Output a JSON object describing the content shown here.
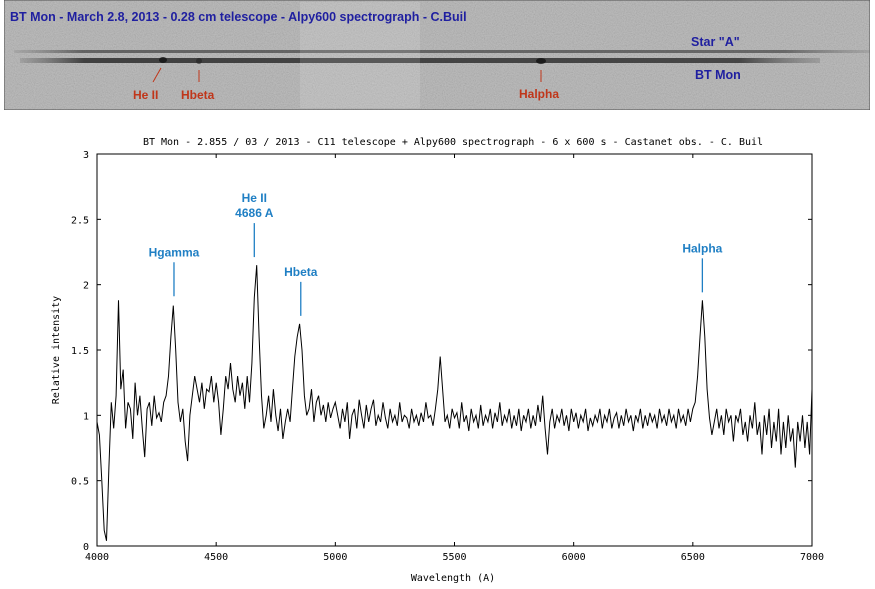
{
  "spectrum_image": {
    "caption": "BT Mon - March 2.8, 2013 - 0.28 cm telescope - Alpy600 spectrograph - C.Buil",
    "label_star_a": "Star \"A\"",
    "label_bt_mon": "BT Mon",
    "line_labels": [
      "He II",
      "Hbeta",
      "Halpha"
    ],
    "colors": {
      "caption": "#1f1fa0",
      "star_labels": "#1f1fa0",
      "lines": "#c0361a",
      "background": "#bdbdbd"
    }
  },
  "chart_data": {
    "type": "line",
    "title": "BT Mon - 2.855 / 03 / 2013 - C11 telescope + Alpy600 spectrograph - 6 x 600 s - Castanet obs. - C. Buil",
    "xlabel": "Wavelength (A)",
    "ylabel": "Relative intensity",
    "xlim": [
      4000,
      7000
    ],
    "ylim": [
      0,
      3
    ],
    "xticks": [
      4000,
      4500,
      5000,
      5500,
      6000,
      6500,
      7000
    ],
    "yticks": [
      0,
      0.5,
      1,
      1.5,
      2,
      2.5,
      3
    ],
    "ytick_labels": [
      "0",
      "0.5",
      "1",
      "1.5",
      "2",
      "2.5",
      "3"
    ],
    "grid": false,
    "annotation_color": "#1f7fc4",
    "annotations": [
      {
        "lines": [
          "Hgamma"
        ],
        "x": 4323,
        "peak": 1.85
      },
      {
        "lines": [
          "He II",
          "4686 A"
        ],
        "x": 4660,
        "peak": 2.15
      },
      {
        "lines": [
          "Hbeta"
        ],
        "x": 4855,
        "peak": 1.7
      },
      {
        "lines": [
          "Halpha"
        ],
        "x": 6540,
        "peak": 1.88
      }
    ],
    "series": [
      {
        "points": [
          [
            4000,
            0.95
          ],
          [
            4010,
            0.85
          ],
          [
            4020,
            0.5
          ],
          [
            4030,
            0.12
          ],
          [
            4040,
            0.04
          ],
          [
            4050,
            0.6
          ],
          [
            4060,
            1.1
          ],
          [
            4070,
            0.9
          ],
          [
            4080,
            1.15
          ],
          [
            4090,
            1.88
          ],
          [
            4100,
            1.2
          ],
          [
            4110,
            1.35
          ],
          [
            4120,
            0.9
          ],
          [
            4130,
            1.1
          ],
          [
            4140,
            1.05
          ],
          [
            4150,
            0.82
          ],
          [
            4160,
            1.25
          ],
          [
            4170,
            1.0
          ],
          [
            4180,
            1.15
          ],
          [
            4190,
            0.9
          ],
          [
            4200,
            0.68
          ],
          [
            4210,
            1.05
          ],
          [
            4220,
            1.1
          ],
          [
            4230,
            0.92
          ],
          [
            4240,
            1.15
          ],
          [
            4250,
            0.98
          ],
          [
            4260,
            1.02
          ],
          [
            4270,
            0.95
          ],
          [
            4280,
            1.1
          ],
          [
            4290,
            1.15
          ],
          [
            4300,
            1.3
          ],
          [
            4310,
            1.6
          ],
          [
            4320,
            1.84
          ],
          [
            4330,
            1.5
          ],
          [
            4340,
            1.1
          ],
          [
            4350,
            0.95
          ],
          [
            4360,
            1.05
          ],
          [
            4370,
            0.8
          ],
          [
            4380,
            0.65
          ],
          [
            4390,
            1.0
          ],
          [
            4400,
            1.15
          ],
          [
            4410,
            1.3
          ],
          [
            4420,
            1.2
          ],
          [
            4430,
            1.1
          ],
          [
            4440,
            1.25
          ],
          [
            4450,
            1.05
          ],
          [
            4460,
            1.2
          ],
          [
            4470,
            1.18
          ],
          [
            4480,
            1.3
          ],
          [
            4490,
            1.1
          ],
          [
            4500,
            1.25
          ],
          [
            4510,
            1.1
          ],
          [
            4520,
            0.85
          ],
          [
            4530,
            1.05
          ],
          [
            4540,
            1.3
          ],
          [
            4550,
            1.2
          ],
          [
            4560,
            1.4
          ],
          [
            4570,
            1.2
          ],
          [
            4580,
            1.1
          ],
          [
            4590,
            1.3
          ],
          [
            4600,
            1.15
          ],
          [
            4610,
            1.25
          ],
          [
            4620,
            1.05
          ],
          [
            4630,
            1.3
          ],
          [
            4640,
            1.1
          ],
          [
            4650,
            1.4
          ],
          [
            4660,
            1.9
          ],
          [
            4670,
            2.15
          ],
          [
            4680,
            1.6
          ],
          [
            4690,
            1.15
          ],
          [
            4700,
            0.9
          ],
          [
            4710,
            1.0
          ],
          [
            4720,
            1.15
          ],
          [
            4730,
            0.95
          ],
          [
            4740,
            1.2
          ],
          [
            4750,
            1.0
          ],
          [
            4760,
            0.88
          ],
          [
            4770,
            1.05
          ],
          [
            4780,
            0.82
          ],
          [
            4790,
            0.95
          ],
          [
            4800,
            1.05
          ],
          [
            4810,
            0.95
          ],
          [
            4820,
            1.2
          ],
          [
            4830,
            1.45
          ],
          [
            4840,
            1.6
          ],
          [
            4850,
            1.7
          ],
          [
            4860,
            1.5
          ],
          [
            4870,
            1.15
          ],
          [
            4880,
            1.0
          ],
          [
            4890,
            1.05
          ],
          [
            4900,
            1.2
          ],
          [
            4910,
            0.95
          ],
          [
            4920,
            1.1
          ],
          [
            4930,
            1.15
          ],
          [
            4940,
            1.0
          ],
          [
            4950,
            1.08
          ],
          [
            4960,
            0.95
          ],
          [
            4970,
            1.1
          ],
          [
            4980,
            0.98
          ],
          [
            4990,
            1.05
          ],
          [
            5000,
            1.1
          ],
          [
            5010,
            1.0
          ],
          [
            5020,
            0.9
          ],
          [
            5030,
            1.05
          ],
          [
            5040,
            0.95
          ],
          [
            5050,
            1.1
          ],
          [
            5060,
            0.82
          ],
          [
            5070,
            1.0
          ],
          [
            5080,
            1.05
          ],
          [
            5090,
            0.9
          ],
          [
            5100,
            1.12
          ],
          [
            5110,
            1.0
          ],
          [
            5120,
            0.9
          ],
          [
            5130,
            1.08
          ],
          [
            5140,
            0.95
          ],
          [
            5150,
            1.05
          ],
          [
            5160,
            1.12
          ],
          [
            5170,
            0.92
          ],
          [
            5180,
            1.0
          ],
          [
            5190,
            0.95
          ],
          [
            5200,
            1.1
          ],
          [
            5210,
            0.98
          ],
          [
            5220,
            0.9
          ],
          [
            5230,
            1.05
          ],
          [
            5240,
            0.95
          ],
          [
            5250,
            1.0
          ],
          [
            5260,
            0.92
          ],
          [
            5270,
            1.1
          ],
          [
            5280,
            0.95
          ],
          [
            5290,
            1.0
          ],
          [
            5300,
            0.98
          ],
          [
            5310,
            0.9
          ],
          [
            5320,
            1.05
          ],
          [
            5330,
            0.95
          ],
          [
            5340,
            1.0
          ],
          [
            5350,
            0.92
          ],
          [
            5360,
            1.02
          ],
          [
            5370,
            0.95
          ],
          [
            5380,
            1.1
          ],
          [
            5390,
            0.98
          ],
          [
            5400,
            1.0
          ],
          [
            5410,
            0.92
          ],
          [
            5420,
            1.05
          ],
          [
            5430,
            1.2
          ],
          [
            5440,
            1.45
          ],
          [
            5450,
            1.2
          ],
          [
            5460,
            0.95
          ],
          [
            5470,
            1.0
          ],
          [
            5480,
            0.9
          ],
          [
            5490,
            1.05
          ],
          [
            5500,
            0.98
          ],
          [
            5510,
            1.02
          ],
          [
            5520,
            0.9
          ],
          [
            5530,
            1.1
          ],
          [
            5540,
            0.95
          ],
          [
            5550,
            1.0
          ],
          [
            5560,
            0.88
          ],
          [
            5570,
            1.05
          ],
          [
            5580,
            0.95
          ],
          [
            5590,
            1.0
          ],
          [
            5600,
            0.9
          ],
          [
            5610,
            1.08
          ],
          [
            5620,
            0.92
          ],
          [
            5630,
            1.0
          ],
          [
            5640,
            0.95
          ],
          [
            5650,
            1.05
          ],
          [
            5660,
            0.9
          ],
          [
            5670,
            1.02
          ],
          [
            5680,
            0.95
          ],
          [
            5690,
            1.1
          ],
          [
            5700,
            0.92
          ],
          [
            5710,
            1.0
          ],
          [
            5720,
            0.95
          ],
          [
            5730,
            1.05
          ],
          [
            5740,
            0.9
          ],
          [
            5750,
            1.0
          ],
          [
            5760,
            0.92
          ],
          [
            5770,
            1.05
          ],
          [
            5780,
            0.88
          ],
          [
            5790,
            1.0
          ],
          [
            5800,
            0.95
          ],
          [
            5810,
            1.05
          ],
          [
            5820,
            0.9
          ],
          [
            5830,
            1.0
          ],
          [
            5840,
            0.92
          ],
          [
            5850,
            1.08
          ],
          [
            5860,
            0.95
          ],
          [
            5870,
            1.15
          ],
          [
            5880,
            0.9
          ],
          [
            5890,
            0.7
          ],
          [
            5900,
            0.95
          ],
          [
            5910,
            1.05
          ],
          [
            5920,
            0.9
          ],
          [
            5930,
            1.0
          ],
          [
            5940,
            0.95
          ],
          [
            5950,
            1.05
          ],
          [
            5960,
            0.92
          ],
          [
            5970,
            1.0
          ],
          [
            5980,
            0.88
          ],
          [
            5990,
            1.05
          ],
          [
            6000,
            0.95
          ],
          [
            6010,
            1.02
          ],
          [
            6020,
            0.9
          ],
          [
            6030,
            1.0
          ],
          [
            6040,
            0.95
          ],
          [
            6050,
            1.05
          ],
          [
            6060,
            0.88
          ],
          [
            6070,
            0.98
          ],
          [
            6080,
            0.92
          ],
          [
            6090,
            1.0
          ],
          [
            6100,
            0.95
          ],
          [
            6110,
            1.05
          ],
          [
            6120,
            0.9
          ],
          [
            6130,
            1.0
          ],
          [
            6140,
            0.95
          ],
          [
            6150,
            1.05
          ],
          [
            6160,
            0.9
          ],
          [
            6170,
            0.98
          ],
          [
            6180,
            1.02
          ],
          [
            6190,
            0.9
          ],
          [
            6200,
            1.0
          ],
          [
            6210,
            0.92
          ],
          [
            6220,
            1.05
          ],
          [
            6230,
            0.95
          ],
          [
            6240,
            1.0
          ],
          [
            6250,
            0.88
          ],
          [
            6260,
            1.0
          ],
          [
            6270,
            0.95
          ],
          [
            6280,
            1.05
          ],
          [
            6290,
            0.9
          ],
          [
            6300,
            1.0
          ],
          [
            6310,
            0.92
          ],
          [
            6320,
            1.02
          ],
          [
            6330,
            0.95
          ],
          [
            6340,
            1.0
          ],
          [
            6350,
            0.9
          ],
          [
            6360,
            1.05
          ],
          [
            6370,
            0.95
          ],
          [
            6380,
            1.0
          ],
          [
            6390,
            0.92
          ],
          [
            6400,
            1.05
          ],
          [
            6410,
            0.95
          ],
          [
            6420,
            1.0
          ],
          [
            6430,
            0.9
          ],
          [
            6440,
            1.05
          ],
          [
            6450,
            0.95
          ],
          [
            6460,
            1.0
          ],
          [
            6470,
            0.92
          ],
          [
            6480,
            1.05
          ],
          [
            6490,
            0.95
          ],
          [
            6500,
            1.05
          ],
          [
            6510,
            1.1
          ],
          [
            6520,
            1.3
          ],
          [
            6530,
            1.6
          ],
          [
            6540,
            1.88
          ],
          [
            6550,
            1.6
          ],
          [
            6560,
            1.2
          ],
          [
            6570,
            0.98
          ],
          [
            6580,
            0.85
          ],
          [
            6590,
            0.95
          ],
          [
            6600,
            1.05
          ],
          [
            6610,
            0.9
          ],
          [
            6620,
            1.0
          ],
          [
            6630,
            0.85
          ],
          [
            6640,
            1.05
          ],
          [
            6650,
            0.95
          ],
          [
            6660,
            1.0
          ],
          [
            6670,
            0.8
          ],
          [
            6680,
            1.0
          ],
          [
            6690,
            0.95
          ],
          [
            6700,
            1.05
          ],
          [
            6710,
            0.85
          ],
          [
            6720,
            0.95
          ],
          [
            6730,
            0.8
          ],
          [
            6740,
            1.0
          ],
          [
            6750,
            0.9
          ],
          [
            6760,
            1.1
          ],
          [
            6770,
            0.85
          ],
          [
            6780,
            0.95
          ],
          [
            6790,
            0.7
          ],
          [
            6800,
            1.0
          ],
          [
            6810,
            0.85
          ],
          [
            6820,
            1.05
          ],
          [
            6830,
            0.75
          ],
          [
            6840,
            0.95
          ],
          [
            6850,
            0.8
          ],
          [
            6860,
            1.05
          ],
          [
            6870,
            0.7
          ],
          [
            6880,
            0.95
          ],
          [
            6890,
            0.75
          ],
          [
            6900,
            1.0
          ],
          [
            6910,
            0.8
          ],
          [
            6920,
            0.9
          ],
          [
            6930,
            0.6
          ],
          [
            6940,
            0.95
          ],
          [
            6950,
            0.8
          ],
          [
            6960,
            1.0
          ],
          [
            6970,
            0.75
          ],
          [
            6980,
            0.95
          ],
          [
            6990,
            0.7
          ],
          [
            7000,
            1.2
          ]
        ]
      }
    ]
  }
}
